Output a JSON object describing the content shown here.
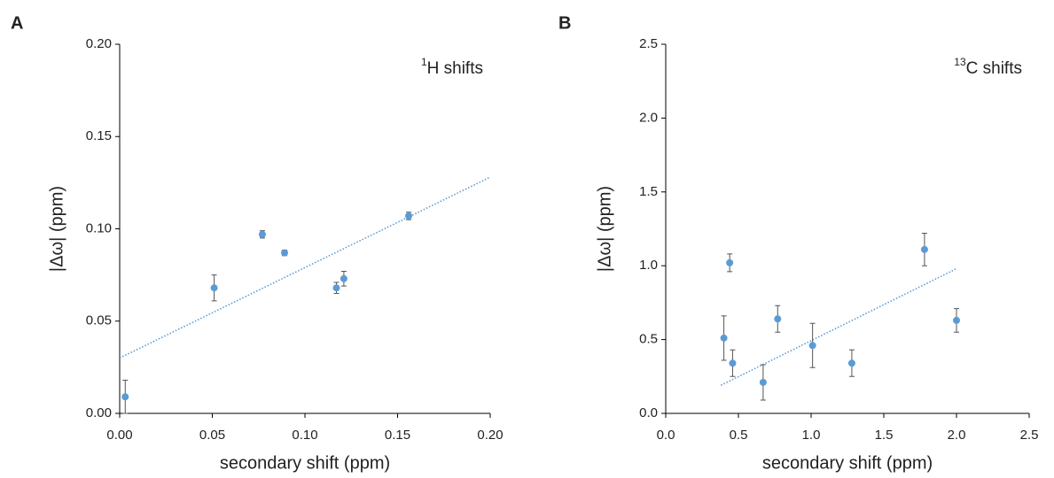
{
  "chart_data": [
    {
      "type": "scatter",
      "panel": "A",
      "annotation": {
        "superscript": "1",
        "text": "H shifts"
      },
      "x_label": "secondary shift (ppm)",
      "y_label": "|Δω| (ppm)",
      "xlim": [
        0,
        0.2
      ],
      "ylim": [
        0,
        0.2
      ],
      "xticks": [
        {
          "value": 0,
          "label": "0.00"
        },
        {
          "value": 0.05,
          "label": "0.05"
        },
        {
          "value": 0.1,
          "label": "0.10"
        },
        {
          "value": 0.15,
          "label": "0.15"
        },
        {
          "value": 0.2,
          "label": "0.20"
        }
      ],
      "yticks": [
        {
          "value": 0,
          "label": "0.00"
        },
        {
          "value": 0.05,
          "label": "0.05"
        },
        {
          "value": 0.1,
          "label": "0.10"
        },
        {
          "value": 0.15,
          "label": "0.15"
        },
        {
          "value": 0.2,
          "label": "0.20"
        }
      ],
      "color": "#5b9bd5",
      "error_color": "#555555",
      "x": [
        0.003,
        0.051,
        0.077,
        0.089,
        0.117,
        0.121,
        0.156
      ],
      "values": [
        0.009,
        0.068,
        0.097,
        0.087,
        0.068,
        0.073,
        0.107
      ],
      "errors": [
        0.009,
        0.007,
        0.002,
        0.0015,
        0.003,
        0.004,
        0.002
      ],
      "trendline": {
        "x": [
          0,
          0.2
        ],
        "y": [
          0.03,
          0.128
        ]
      }
    },
    {
      "type": "scatter",
      "panel": "B",
      "annotation": {
        "superscript": "13",
        "text": "C shifts"
      },
      "x_label": "secondary shift (ppm)",
      "y_label": "|Δω| (ppm)",
      "xlim": [
        0,
        2.5
      ],
      "ylim": [
        0,
        2.5
      ],
      "xticks": [
        {
          "value": 0,
          "label": "0.0"
        },
        {
          "value": 0.5,
          "label": "0.5"
        },
        {
          "value": 1,
          "label": "1.0"
        },
        {
          "value": 1.5,
          "label": "1.5"
        },
        {
          "value": 2,
          "label": "2.0"
        },
        {
          "value": 2.5,
          "label": "2.5"
        }
      ],
      "yticks": [
        {
          "value": 0,
          "label": "0.0"
        },
        {
          "value": 0.5,
          "label": "0.5"
        },
        {
          "value": 1,
          "label": "1.0"
        },
        {
          "value": 1.5,
          "label": "1.5"
        },
        {
          "value": 2,
          "label": "2.0"
        },
        {
          "value": 2.5,
          "label": "2.5"
        }
      ],
      "color": "#5b9bd5",
      "error_color": "#555555",
      "x": [
        0.4,
        0.44,
        0.46,
        0.67,
        0.77,
        1.01,
        1.28,
        1.78,
        2.0
      ],
      "values": [
        0.51,
        1.02,
        0.34,
        0.21,
        0.64,
        0.46,
        0.34,
        1.11,
        0.63
      ],
      "errors": [
        0.15,
        0.06,
        0.09,
        0.12,
        0.09,
        0.15,
        0.09,
        0.11,
        0.08
      ],
      "trendline": {
        "x": [
          0.38,
          2.0
        ],
        "y": [
          0.19,
          0.98
        ]
      }
    }
  ]
}
